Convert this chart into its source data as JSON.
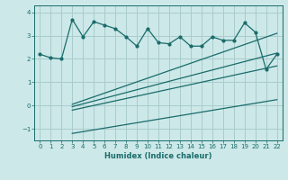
{
  "xlabel": "Humidex (Indice chaleur)",
  "bg_color": "#cce8e8",
  "grid_color": "#aacccc",
  "line_color": "#1a6b6b",
  "xlim": [
    -0.5,
    22.5
  ],
  "ylim": [
    -1.5,
    4.3
  ],
  "yticks": [
    -1,
    0,
    1,
    2,
    3,
    4
  ],
  "xticks": [
    0,
    1,
    2,
    3,
    4,
    5,
    6,
    7,
    8,
    9,
    10,
    11,
    12,
    13,
    14,
    15,
    16,
    17,
    18,
    19,
    20,
    21,
    22
  ],
  "main_line_x": [
    0,
    1,
    2,
    3,
    4,
    5,
    6,
    7,
    8,
    9,
    10,
    11,
    12,
    13,
    14,
    15,
    16,
    17,
    18,
    19,
    20,
    21,
    22
  ],
  "main_line_y": [
    2.2,
    2.05,
    2.0,
    3.7,
    2.95,
    3.6,
    3.45,
    3.3,
    2.95,
    2.55,
    3.3,
    2.7,
    2.65,
    2.95,
    2.55,
    2.55,
    2.95,
    2.8,
    2.8,
    3.55,
    3.15,
    1.55,
    2.2
  ],
  "line1_x": [
    3,
    22
  ],
  "line1_y": [
    0.05,
    3.1
  ],
  "line2_x": [
    3,
    22
  ],
  "line2_y": [
    -0.05,
    2.25
  ],
  "line3_x": [
    3,
    22
  ],
  "line3_y": [
    -0.2,
    1.7
  ],
  "line4_x": [
    3,
    22
  ],
  "line4_y": [
    -1.2,
    0.25
  ]
}
